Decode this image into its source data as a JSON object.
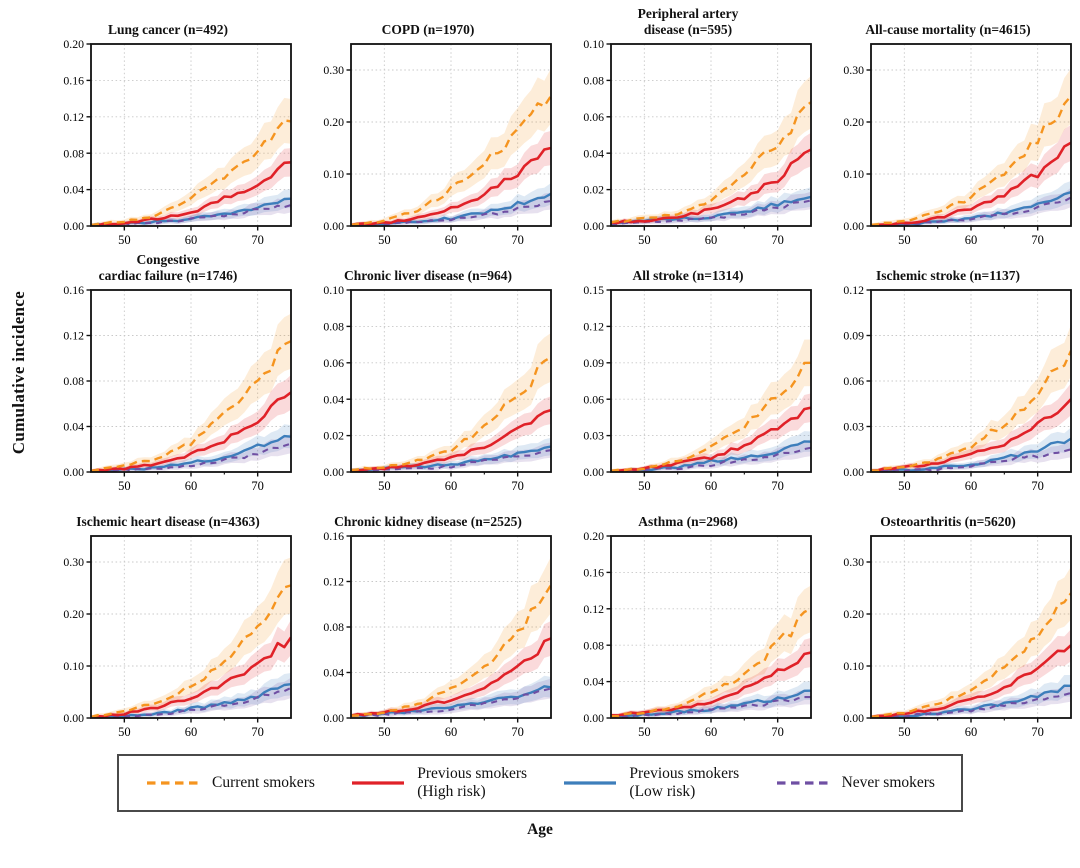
{
  "figure": {
    "ylabel": "Cumulative incidence",
    "xlabel": "Age"
  },
  "colors": {
    "current": "#F5941F",
    "high": "#E02128",
    "low": "#3D7EBB",
    "never": "#6F4FA3",
    "grid": "#c8c8c8",
    "axis": "#111111"
  },
  "legend": {
    "items": [
      {
        "key": "current",
        "label_lines": [
          "Current smokers"
        ],
        "dash": true
      },
      {
        "key": "high",
        "label_lines": [
          "Previous smokers",
          "(High risk)"
        ],
        "dash": false
      },
      {
        "key": "low",
        "label_lines": [
          "Previous smokers",
          "(Low risk)"
        ],
        "dash": false
      },
      {
        "key": "never",
        "label_lines": [
          "Never smokers"
        ],
        "dash": true
      }
    ]
  },
  "chart_data": {
    "type": "line",
    "xlabel": "Age",
    "ylabel": "Cumulative incidence",
    "x": [
      45,
      50,
      55,
      60,
      65,
      70,
      75
    ],
    "xlim": [
      45,
      75
    ],
    "x_ticks": [
      50,
      60,
      70
    ],
    "grid": true,
    "legend_position": "bottom",
    "series_names": [
      "Current smokers",
      "Previous smokers (High risk)",
      "Previous smokers (Low risk)",
      "Never smokers"
    ],
    "panels": [
      {
        "title_lines": [
          "Lung cancer (n=492)"
        ],
        "title": "Lung cancer (n=492)",
        "ylim": [
          0,
          0.2
        ],
        "ytick_step": 0.04,
        "series": [
          {
            "name": "Current smokers",
            "values": [
              0.001,
              0.005,
              0.012,
              0.03,
              0.055,
              0.085,
              0.115
            ]
          },
          {
            "name": "Previous smokers (High risk)",
            "values": [
              0.001,
              0.003,
              0.008,
              0.015,
              0.03,
              0.045,
              0.07
            ]
          },
          {
            "name": "Previous smokers (Low risk)",
            "values": [
              0.001,
              0.002,
              0.005,
              0.008,
              0.013,
              0.02,
              0.03
            ]
          },
          {
            "name": "Never smokers",
            "values": [
              0.0,
              0.002,
              0.004,
              0.007,
              0.012,
              0.018,
              0.023
            ]
          }
        ]
      },
      {
        "title_lines": [
          "COPD (n=1970)"
        ],
        "title": "COPD (n=1970)",
        "ylim": [
          0,
          0.35
        ],
        "ytick_step": 0.1,
        "series": [
          {
            "name": "Current smokers",
            "values": [
              0.002,
              0.01,
              0.03,
              0.07,
              0.12,
              0.18,
              0.25
            ]
          },
          {
            "name": "Previous smokers (High risk)",
            "values": [
              0.002,
              0.006,
              0.015,
              0.035,
              0.06,
              0.1,
              0.15
            ]
          },
          {
            "name": "Previous smokers (Low risk)",
            "values": [
              0.001,
              0.004,
              0.008,
              0.015,
              0.026,
              0.042,
              0.062
            ]
          },
          {
            "name": "Never smokers",
            "values": [
              0.001,
              0.004,
              0.007,
              0.012,
              0.02,
              0.032,
              0.048
            ]
          }
        ]
      },
      {
        "title_lines": [
          "Peripheral artery",
          "disease (n=595)"
        ],
        "title": "Peripheral artery disease (n=595)",
        "ylim": [
          0,
          0.1
        ],
        "ytick_step": 0.02,
        "series": [
          {
            "name": "Current smokers",
            "values": [
              0.002,
              0.004,
              0.007,
              0.014,
              0.028,
              0.045,
              0.068
            ]
          },
          {
            "name": "Previous smokers (High risk)",
            "values": [
              0.002,
              0.003,
              0.005,
              0.009,
              0.016,
              0.026,
              0.042
            ]
          },
          {
            "name": "Previous smokers (Low risk)",
            "values": [
              0.002,
              0.003,
              0.004,
              0.005,
              0.008,
              0.012,
              0.016
            ]
          },
          {
            "name": "Never smokers",
            "values": [
              0.001,
              0.002,
              0.003,
              0.004,
              0.007,
              0.01,
              0.014
            ]
          }
        ]
      },
      {
        "title_lines": [
          "All-cause mortality (n=4615)"
        ],
        "title": "All-cause mortality (n=4615)",
        "ylim": [
          0,
          0.35
        ],
        "ytick_step": 0.1,
        "series": [
          {
            "name": "Current smokers",
            "values": [
              0.002,
              0.01,
              0.025,
              0.055,
              0.1,
              0.17,
              0.25
            ]
          },
          {
            "name": "Previous smokers (High risk)",
            "values": [
              0.001,
              0.005,
              0.015,
              0.035,
              0.06,
              0.1,
              0.16
            ]
          },
          {
            "name": "Previous smokers (Low risk)",
            "values": [
              0.001,
              0.003,
              0.008,
              0.015,
              0.025,
              0.04,
              0.065
            ]
          },
          {
            "name": "Never smokers",
            "values": [
              0.001,
              0.003,
              0.007,
              0.013,
              0.022,
              0.035,
              0.055
            ]
          }
        ]
      },
      {
        "title_lines": [
          "Congestive",
          "cardiac failure (n=1746)"
        ],
        "title": "Congestive cardiac failure (n=1746)",
        "ylim": [
          0,
          0.16
        ],
        "ytick_step": 0.04,
        "series": [
          {
            "name": "Current smokers",
            "values": [
              0.001,
              0.006,
              0.012,
              0.025,
              0.05,
              0.08,
              0.115
            ]
          },
          {
            "name": "Previous smokers (High risk)",
            "values": [
              0.001,
              0.003,
              0.007,
              0.015,
              0.028,
              0.045,
              0.07
            ]
          },
          {
            "name": "Previous smokers (Low risk)",
            "values": [
              0.001,
              0.002,
              0.004,
              0.008,
              0.013,
              0.022,
              0.031
            ]
          },
          {
            "name": "Never smokers",
            "values": [
              0.0,
              0.002,
              0.003,
              0.006,
              0.01,
              0.016,
              0.025
            ]
          }
        ]
      },
      {
        "title_lines": [
          "Chronic liver disease (n=964)"
        ],
        "title": "Chronic liver disease (n=964)",
        "ylim": [
          0,
          0.1
        ],
        "ytick_step": 0.02,
        "series": [
          {
            "name": "Current smokers",
            "values": [
              0.001,
              0.003,
              0.006,
              0.012,
              0.025,
              0.042,
              0.063
            ]
          },
          {
            "name": "Previous smokers (High risk)",
            "values": [
              0.001,
              0.002,
              0.004,
              0.008,
              0.014,
              0.024,
              0.034
            ]
          },
          {
            "name": "Previous smokers (Low risk)",
            "values": [
              0.001,
              0.002,
              0.003,
              0.004,
              0.007,
              0.01,
              0.014
            ]
          },
          {
            "name": "Never smokers",
            "values": [
              0.001,
              0.001,
              0.002,
              0.003,
              0.006,
              0.009,
              0.012
            ]
          }
        ]
      },
      {
        "title_lines": [
          "All stroke (n=1314)"
        ],
        "title": "All stroke (n=1314)",
        "ylim": [
          0,
          0.15
        ],
        "ytick_step": 0.03,
        "series": [
          {
            "name": "Current smokers",
            "values": [
              0.001,
              0.003,
              0.009,
              0.02,
              0.038,
              0.062,
              0.09
            ]
          },
          {
            "name": "Previous smokers (High risk)",
            "values": [
              0.001,
              0.003,
              0.007,
              0.012,
              0.022,
              0.036,
              0.053
            ]
          },
          {
            "name": "Previous smokers (Low risk)",
            "values": [
              0.001,
              0.002,
              0.004,
              0.009,
              0.012,
              0.017,
              0.025
            ]
          },
          {
            "name": "Never smokers",
            "values": [
              0.0,
              0.002,
              0.003,
              0.006,
              0.01,
              0.014,
              0.02
            ]
          }
        ]
      },
      {
        "title_lines": [
          "Ischemic stroke (n=1137)"
        ],
        "title": "Ischemic stroke (n=1137)",
        "ylim": [
          0,
          0.12
        ],
        "ytick_step": 0.03,
        "series": [
          {
            "name": "Current smokers",
            "values": [
              0.001,
              0.003,
              0.008,
              0.017,
              0.032,
              0.052,
              0.08
            ]
          },
          {
            "name": "Previous smokers (High risk)",
            "values": [
              0.001,
              0.003,
              0.006,
              0.012,
              0.019,
              0.031,
              0.048
            ]
          },
          {
            "name": "Previous smokers (Low risk)",
            "values": [
              0.001,
              0.001,
              0.003,
              0.005,
              0.009,
              0.015,
              0.022
            ]
          },
          {
            "name": "Never smokers",
            "values": [
              0.001,
              0.001,
              0.002,
              0.004,
              0.008,
              0.011,
              0.015
            ]
          }
        ]
      },
      {
        "title_lines": [
          "Ischemic heart disease (n=4363)"
        ],
        "title": "Ischemic heart disease (n=4363)",
        "ylim": [
          0,
          0.35
        ],
        "ytick_step": 0.1,
        "series": [
          {
            "name": "Current smokers",
            "values": [
              0.002,
              0.012,
              0.03,
              0.06,
              0.11,
              0.17,
              0.255
            ]
          },
          {
            "name": "Previous smokers (High risk)",
            "values": [
              0.002,
              0.008,
              0.02,
              0.04,
              0.065,
              0.105,
              0.155
            ]
          },
          {
            "name": "Previous smokers (Low risk)",
            "values": [
              0.001,
              0.004,
              0.008,
              0.018,
              0.028,
              0.042,
              0.065
            ]
          },
          {
            "name": "Never smokers",
            "values": [
              0.001,
              0.003,
              0.007,
              0.015,
              0.025,
              0.038,
              0.058
            ]
          }
        ]
      },
      {
        "title_lines": [
          "Chronic kidney disease (n=2525)"
        ],
        "title": "Chronic kidney disease (n=2525)",
        "ylim": [
          0,
          0.16
        ],
        "ytick_step": 0.04,
        "series": [
          {
            "name": "Current smokers",
            "values": [
              0.002,
              0.005,
              0.012,
              0.025,
              0.045,
              0.075,
              0.117
            ]
          },
          {
            "name": "Previous smokers (High risk)",
            "values": [
              0.002,
              0.005,
              0.009,
              0.016,
              0.028,
              0.045,
              0.07
            ]
          },
          {
            "name": "Previous smokers (Low risk)",
            "values": [
              0.002,
              0.004,
              0.006,
              0.009,
              0.014,
              0.02,
              0.027
            ]
          },
          {
            "name": "Never smokers",
            "values": [
              0.002,
              0.003,
              0.005,
              0.008,
              0.013,
              0.019,
              0.026
            ]
          }
        ]
      },
      {
        "title_lines": [
          "Asthma (n=2968)"
        ],
        "title": "Asthma (n=2968)",
        "ylim": [
          0,
          0.2
        ],
        "ytick_step": 0.04,
        "series": [
          {
            "name": "Current smokers",
            "values": [
              0.002,
              0.006,
              0.013,
              0.028,
              0.048,
              0.08,
              0.12
            ]
          },
          {
            "name": "Previous smokers (High risk)",
            "values": [
              0.003,
              0.006,
              0.01,
              0.018,
              0.032,
              0.05,
              0.072
            ]
          },
          {
            "name": "Previous smokers (Low risk)",
            "values": [
              0.002,
              0.004,
              0.007,
              0.01,
              0.016,
              0.021,
              0.03
            ]
          },
          {
            "name": "Never smokers",
            "values": [
              0.001,
              0.003,
              0.006,
              0.009,
              0.012,
              0.018,
              0.023
            ]
          }
        ]
      },
      {
        "title_lines": [
          "Osteoarthritis (n=5620)"
        ],
        "title": "Osteoarthritis (n=5620)",
        "ylim": [
          0,
          0.35
        ],
        "ytick_step": 0.1,
        "series": [
          {
            "name": "Current smokers",
            "values": [
              0.002,
              0.01,
              0.028,
              0.055,
              0.1,
              0.16,
              0.24
            ]
          },
          {
            "name": "Previous smokers (High risk)",
            "values": [
              0.002,
              0.008,
              0.018,
              0.035,
              0.06,
              0.095,
              0.14
            ]
          },
          {
            "name": "Previous smokers (Low risk)",
            "values": [
              0.001,
              0.004,
              0.01,
              0.018,
              0.028,
              0.042,
              0.062
            ]
          },
          {
            "name": "Never smokers",
            "values": [
              0.001,
              0.004,
              0.009,
              0.015,
              0.024,
              0.034,
              0.048
            ]
          }
        ]
      }
    ]
  }
}
